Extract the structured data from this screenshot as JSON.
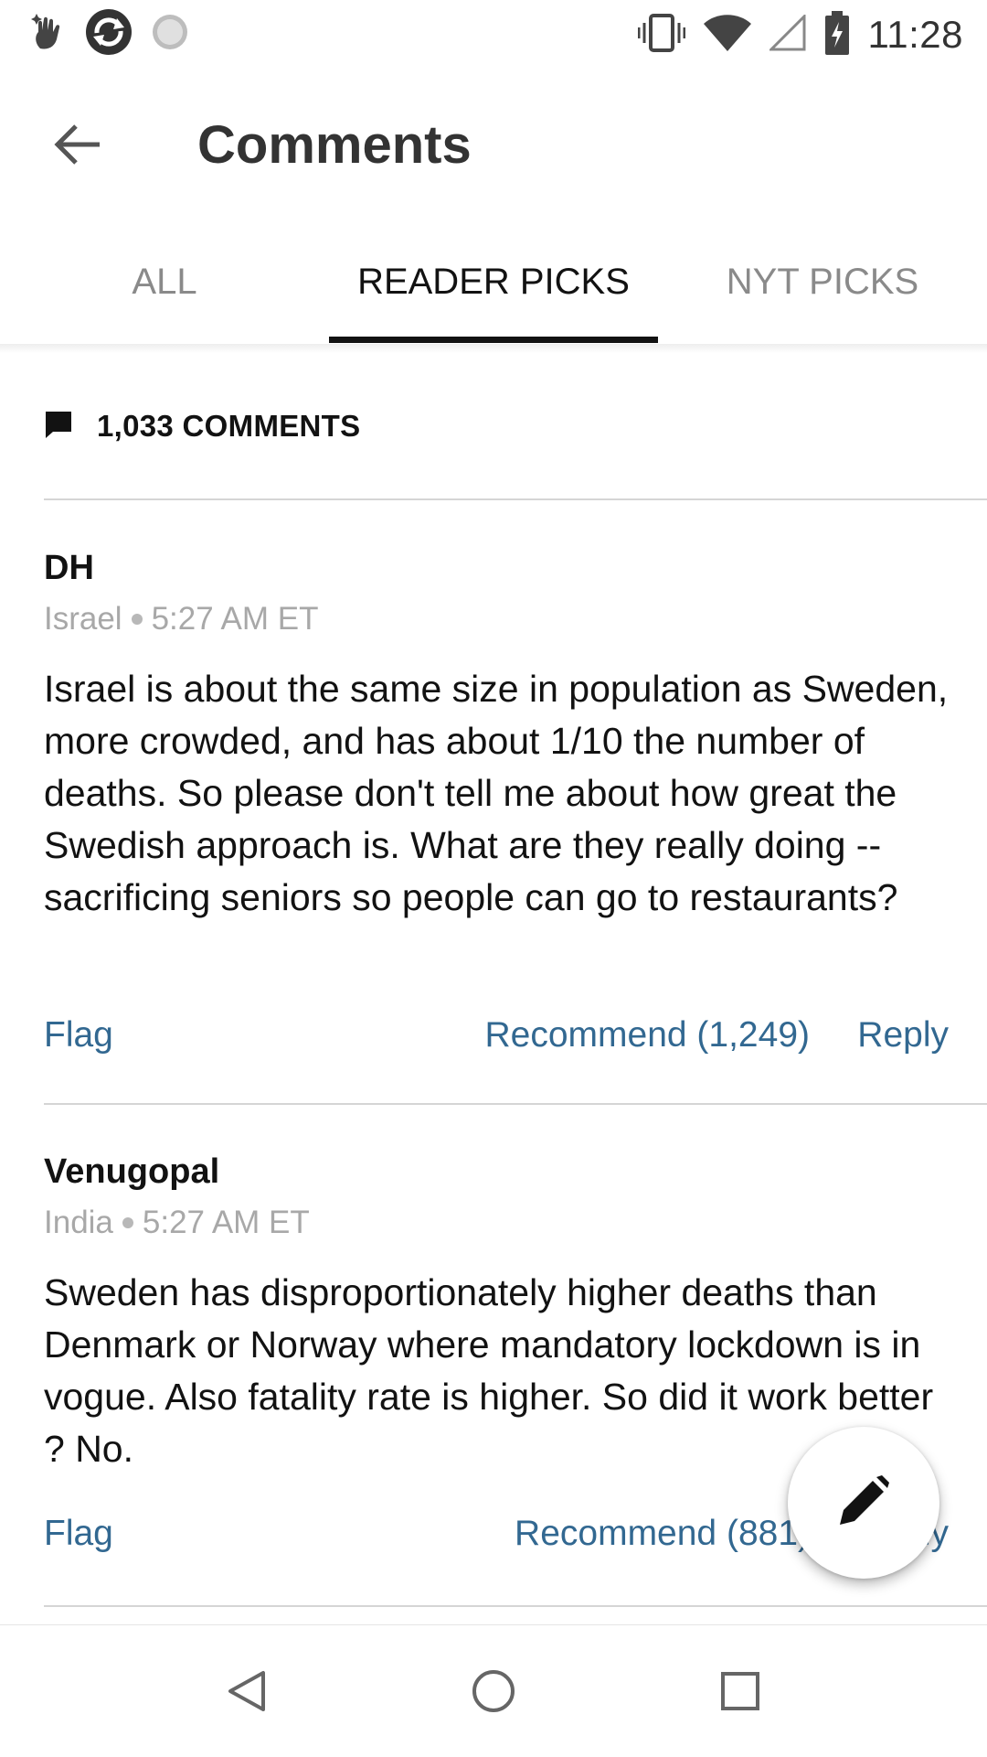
{
  "status_bar": {
    "time": "11:28",
    "left_icons": [
      "hand-sparkle-icon",
      "refresh-circle-icon",
      "loading-circle-icon"
    ],
    "right_icons": [
      "vibrate-icon",
      "wifi-icon",
      "cell-signal-icon",
      "battery-charging-icon"
    ]
  },
  "header": {
    "title": "Comments",
    "back_icon": "arrow-left-icon"
  },
  "tabs": [
    {
      "label": "ALL",
      "active": false
    },
    {
      "label": "READER PICKS",
      "active": true
    },
    {
      "label": "NYT PICKS",
      "active": false
    }
  ],
  "comment_count": {
    "icon": "comment-bubble-icon",
    "label": "1,033 COMMENTS"
  },
  "comments": [
    {
      "author": "DH",
      "location": "Israel",
      "time": "5:27 AM ET",
      "body": "Israel is about the same size in population as Sweden, more crowded, and has about 1/10 the number of deaths. So please don't tell me about how great the Swedish approach is. What are they really doing -- sacrificing seniors so people can go to restaurants?",
      "flag_label": "Flag",
      "recommend_label": "Recommend (1,249)",
      "reply_label": "Reply"
    },
    {
      "author": "Venugopal",
      "location": "India",
      "time": "5:27 AM ET",
      "body": "Sweden has disproportionately higher deaths than Denmark or Norway where mandatory lockdown is in vogue. Also fatality rate is higher. So did it work better ? No.",
      "flag_label": "Flag",
      "recommend_label": "Recommend (881)",
      "reply_label": "Reply"
    }
  ],
  "fab": {
    "icon": "pencil-icon"
  },
  "nav_bar": {
    "icons": [
      "nav-back-icon",
      "nav-home-icon",
      "nav-recents-icon"
    ]
  },
  "colors": {
    "link": "#326891",
    "text": "#121212",
    "muted": "#a8a8a8",
    "tab_inactive": "#8a8a8a"
  }
}
